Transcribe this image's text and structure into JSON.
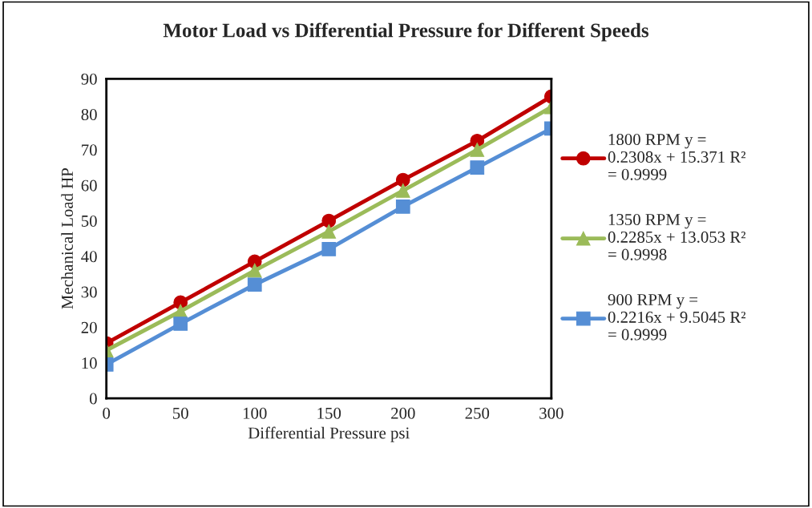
{
  "chart_data": {
    "type": "line",
    "title": "Motor Load vs Differential Pressure for Different Speeds",
    "xlabel": "Differential Pressure psi",
    "ylabel": "Mechanical Load HP",
    "x": [
      0,
      50,
      100,
      150,
      200,
      250,
      300
    ],
    "series": [
      {
        "name": "1800 RPM y =\n0.2308x + 15.371 R²\n= 0.9999",
        "color": "#c00000",
        "marker": "circle",
        "values": [
          15.5,
          27,
          38.5,
          50,
          61.5,
          72.5,
          85
        ]
      },
      {
        "name": "1350 RPM y =\n0.2285x + 13.053 R²\n= 0.9998",
        "color": "#9bbb59",
        "marker": "triangle",
        "values": [
          13.5,
          24.5,
          36,
          47,
          58.5,
          70,
          82
        ]
      },
      {
        "name": "900 RPM y =\n0.2216x + 9.5045 R²\n= 0.9999",
        "color": "#558ed5",
        "marker": "square",
        "values": [
          9.5,
          21,
          32,
          42,
          54,
          65,
          76
        ]
      }
    ],
    "xlim": [
      0,
      300
    ],
    "xticks": [
      0,
      50,
      100,
      150,
      200,
      250,
      300
    ],
    "ylim": [
      0,
      90
    ],
    "yticks": [
      0,
      10,
      20,
      30,
      40,
      50,
      60,
      70,
      80,
      90
    ],
    "grid": false,
    "legend": "right",
    "line_style": "solid"
  }
}
